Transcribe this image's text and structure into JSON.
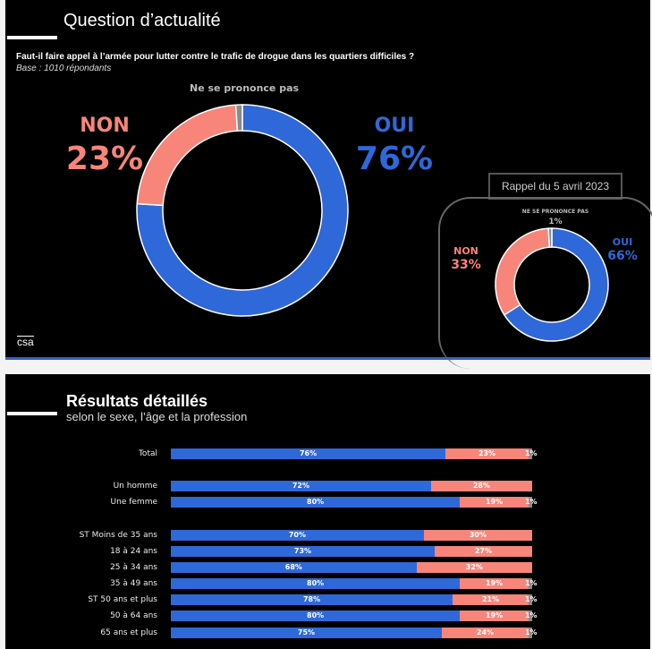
{
  "section1": {
    "title": "Question d’actualité",
    "question": "Faut-il faire appel à l’armée pour lutter contre le trafic de drogue dans les quartiers difficiles ?",
    "base": "Base : 1010 répondants",
    "logo": "csa"
  },
  "section2": {
    "title": "Résultats détaillés",
    "subtitle": "selon le sexe, l’âge et la profession"
  },
  "colors": {
    "oui": "#2f68d8",
    "non": "#f8857a",
    "nsp": "#8a8a8a"
  },
  "chart_data": [
    {
      "type": "pie",
      "title": "Question d’actualité",
      "labels": [
        "OUI",
        "NON",
        "Ne se prononce pas"
      ],
      "values": [
        76,
        23,
        1
      ],
      "value_labels": [
        "76%",
        "23%",
        "1%"
      ]
    },
    {
      "type": "pie",
      "title": "Rappel du 5 avril 2023",
      "labels": [
        "OUI",
        "NON",
        "NE SE PRONONCE PAS"
      ],
      "values": [
        66,
        33,
        1
      ],
      "value_labels": [
        "66%",
        "33%",
        "1%"
      ]
    },
    {
      "type": "bar",
      "stacked": true,
      "orientation": "horizontal",
      "categories": [
        "Total",
        "Un homme",
        "Une femme",
        "ST Moins de 35 ans",
        "18 à 24 ans",
        "25 à 34 ans",
        "35 à 49 ans",
        "ST 50 ans et plus",
        "50 à 64 ans",
        "65 ans et plus"
      ],
      "series": [
        {
          "name": "Oui",
          "values": [
            76,
            72,
            80,
            70,
            73,
            68,
            80,
            78,
            80,
            75
          ]
        },
        {
          "name": "Non",
          "values": [
            23,
            28,
            19,
            30,
            27,
            32,
            19,
            21,
            19,
            24
          ]
        },
        {
          "name": "Ne se prononce pas",
          "values": [
            1,
            0,
            1,
            0,
            0,
            0,
            1,
            1,
            1,
            1
          ]
        }
      ],
      "xlim": [
        0,
        100
      ]
    }
  ]
}
